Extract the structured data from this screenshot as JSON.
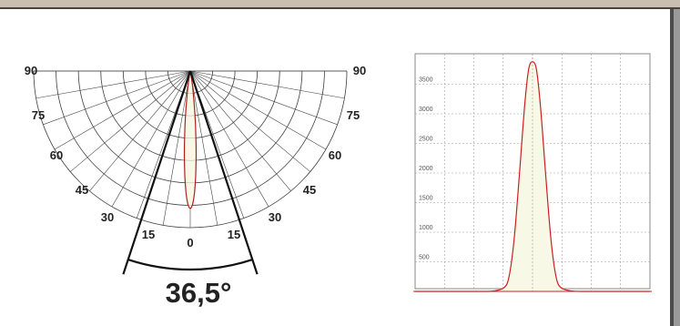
{
  "polar_chart": {
    "angle_labels_left": [
      "90",
      "75",
      "60",
      "45",
      "30",
      "15"
    ],
    "center_label": "0",
    "angle_labels_right": [
      "90",
      "75",
      "60",
      "45",
      "30",
      "15"
    ],
    "beam_angle_label": "36,5°"
  },
  "chart_data": {
    "type": "line",
    "title": "",
    "xlabel": "",
    "ylabel": "",
    "yticks": [
      500,
      1000,
      1500,
      2000,
      2500,
      3000,
      3500
    ],
    "ylim": [
      0,
      4000
    ],
    "xlim": [
      -90,
      90
    ],
    "grid": true,
    "x": [
      -90,
      -40,
      -30,
      -22,
      -18,
      -14,
      -10,
      -6,
      -3,
      0,
      3,
      6,
      10,
      14,
      18,
      22,
      30,
      40,
      90
    ],
    "series": [
      {
        "values": [
          0,
          0,
          8,
          60,
          250,
          900,
          2000,
          3150,
          3750,
          3880,
          3750,
          3150,
          2000,
          900,
          250,
          60,
          8,
          0,
          0
        ],
        "color": "#cc1f1f",
        "fill": "#f8f8e6"
      }
    ]
  }
}
